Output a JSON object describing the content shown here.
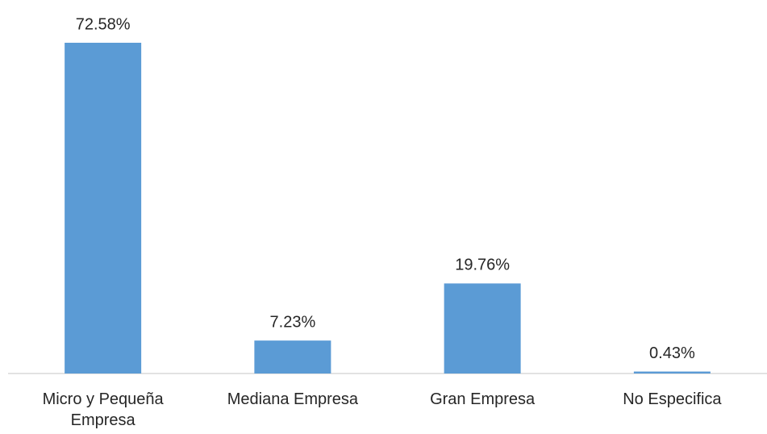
{
  "chart_data": {
    "type": "bar",
    "categories": [
      "Micro y Pequeña Empresa",
      "Mediana Empresa",
      "Gran Empresa",
      "No Especifica"
    ],
    "values": [
      72.58,
      7.23,
      19.76,
      0.43
    ],
    "value_labels": [
      "72.58%",
      "7.23%",
      "19.76%",
      "0.43%"
    ],
    "color": "#5b9bd5"
  }
}
